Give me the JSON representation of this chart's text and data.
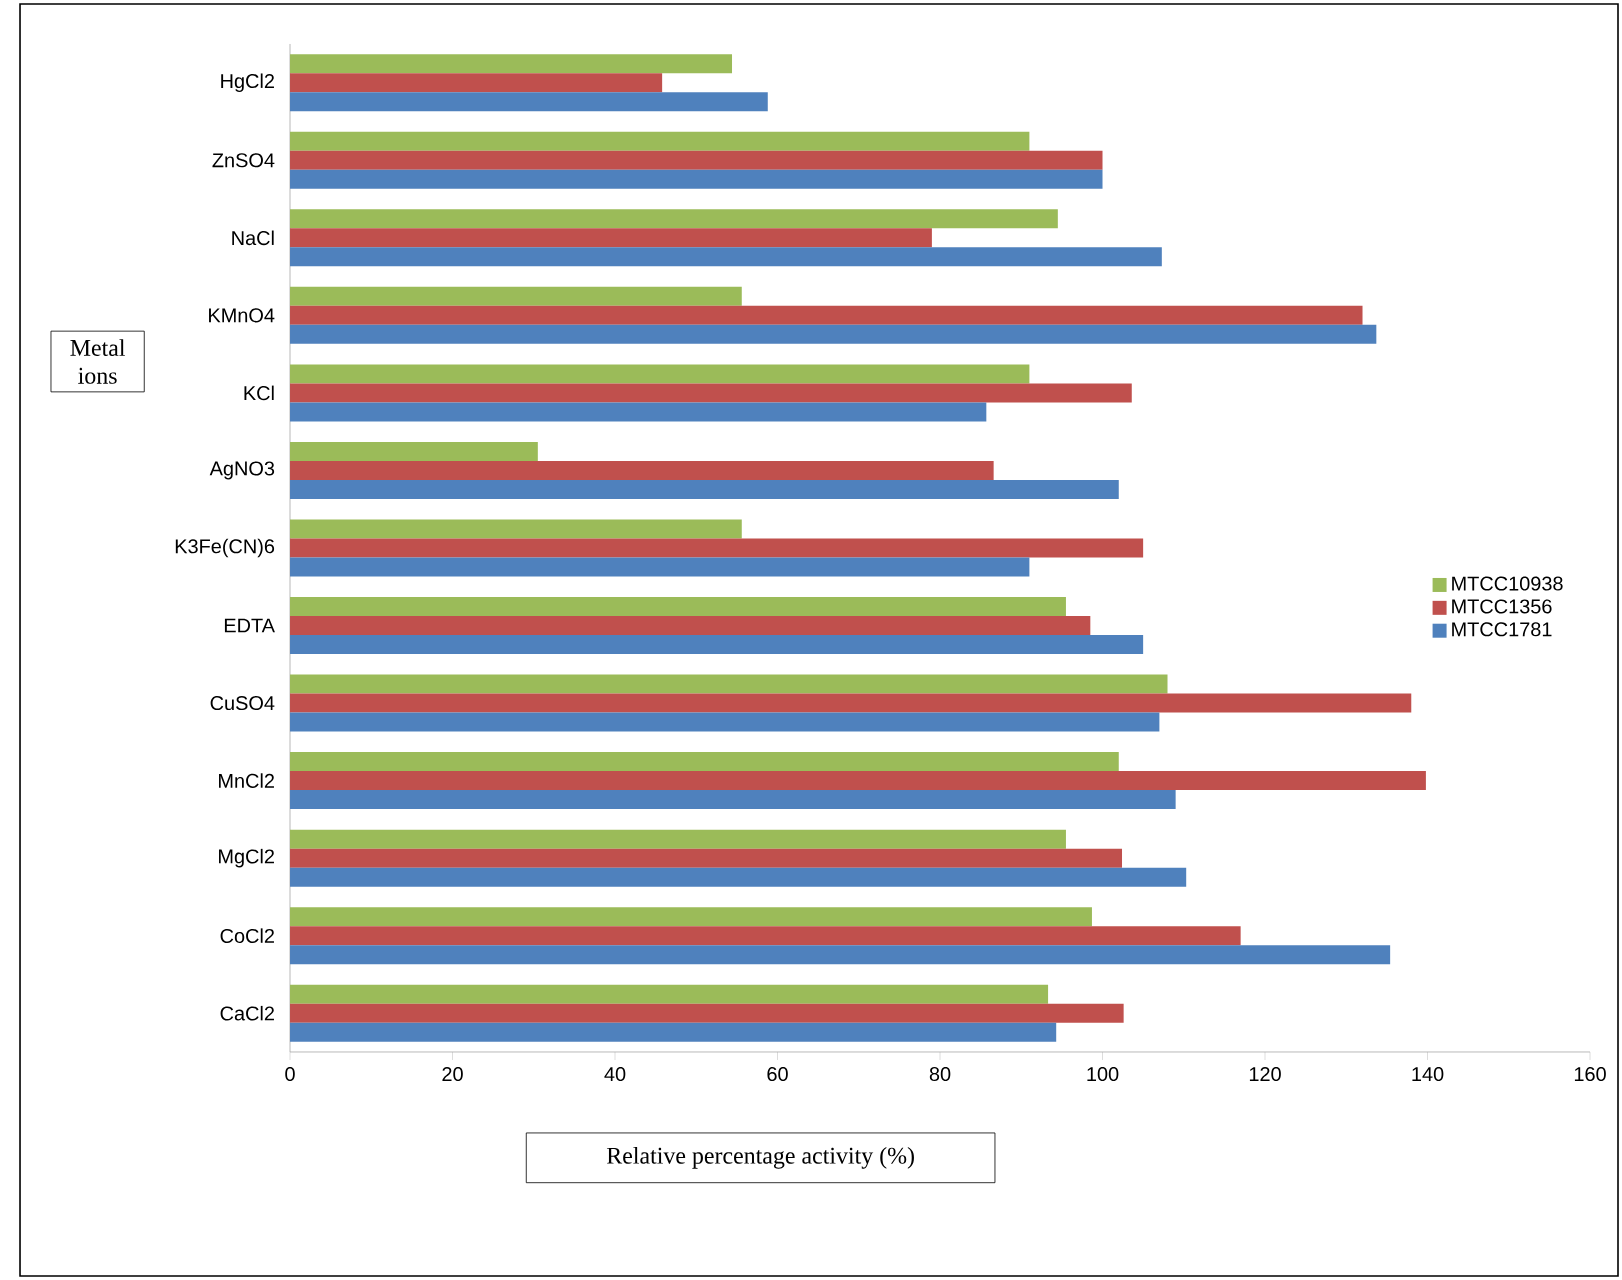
{
  "chart_data": {
    "type": "bar",
    "orientation": "horizontal",
    "xlabel": "Relative percentage activity (%)",
    "ylabel": "Metal ions",
    "categories": [
      "HgCl2",
      "ZnSO4",
      "NaCl",
      "KMnO4",
      "KCl",
      "AgNO3",
      "K3Fe(CN)6",
      "EDTA",
      "CuSO4",
      "MnCl2",
      "MgCl2",
      "CoCl2",
      "CaCl2"
    ],
    "series": [
      {
        "name": "MTCC10938",
        "color": "#9bbb59",
        "values": [
          54.4,
          91,
          94.5,
          55.6,
          91,
          30.5,
          55.6,
          95.5,
          108,
          102,
          95.5,
          98.7,
          93.3
        ]
      },
      {
        "name": "MTCC1356",
        "color": "#c0504d",
        "values": [
          45.8,
          100,
          79,
          132,
          103.6,
          86.6,
          105,
          98.5,
          138,
          139.8,
          102.4,
          117,
          102.6
        ]
      },
      {
        "name": "MTCC1781",
        "color": "#4f81bd",
        "values": [
          58.8,
          100,
          107.3,
          133.7,
          85.7,
          102,
          91,
          105,
          107,
          109,
          110.3,
          135.4,
          94.3
        ]
      }
    ],
    "xlim": [
      0,
      160
    ],
    "xticks": [
      0,
      20,
      40,
      60,
      80,
      100,
      120,
      140,
      160
    ],
    "legend": "right"
  }
}
